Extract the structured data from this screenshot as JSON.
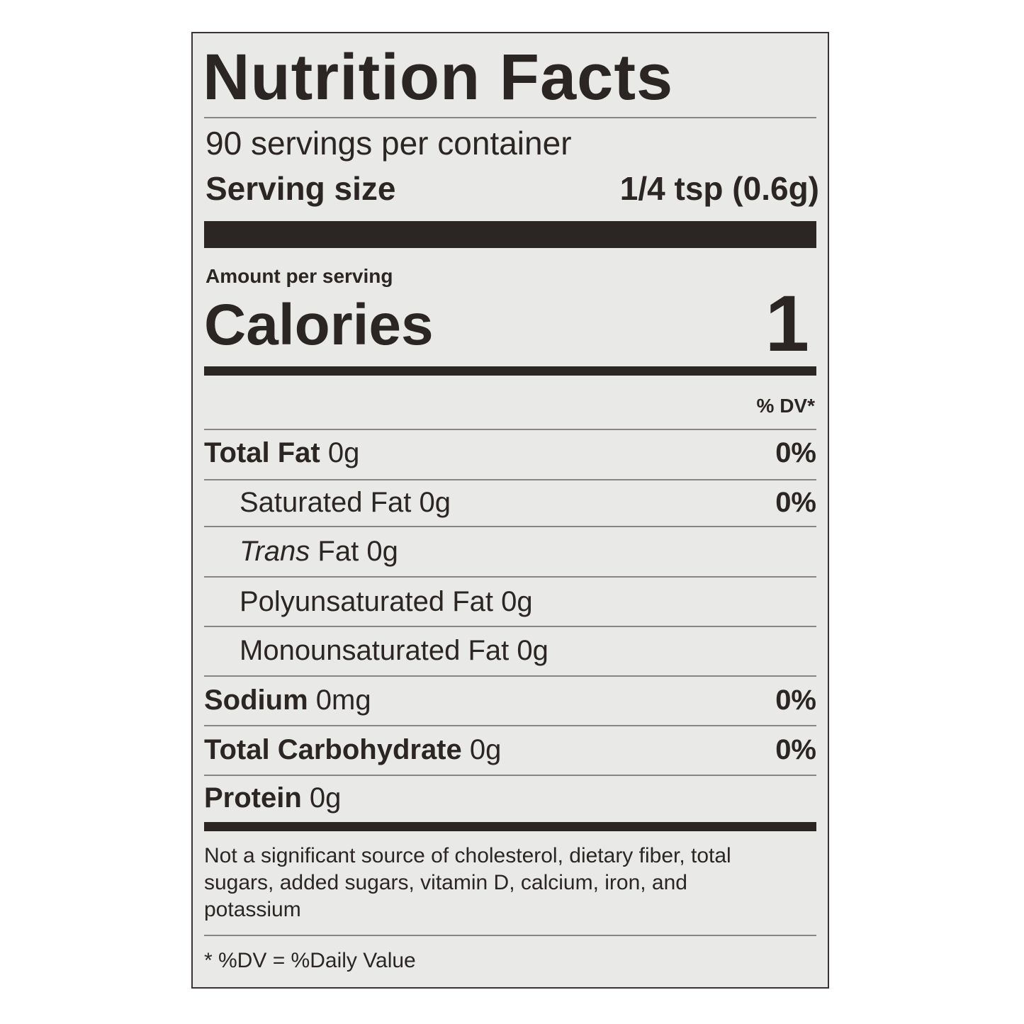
{
  "header": {
    "title": "Nutrition Facts",
    "servings": "90 servings per container",
    "serving_size_label": "Serving size",
    "serving_size_value": "1/4 tsp (0.6g)"
  },
  "calories": {
    "amount_label": "Amount per serving",
    "label": "Calories",
    "value": "1"
  },
  "dv_header": "% DV*",
  "nutrients": [
    {
      "name": "Total Fat",
      "amount": "0g",
      "dv": "0%"
    },
    {
      "name": "Saturated Fat",
      "amount": "0g",
      "dv": "0%"
    },
    {
      "name_italic": "Trans",
      "name": "Fat",
      "amount": "0g"
    },
    {
      "name": "Polyunsaturated Fat",
      "amount": "0g"
    },
    {
      "name": "Monounsaturated Fat",
      "amount": "0g"
    },
    {
      "name": "Sodium",
      "amount": "0mg",
      "dv": "0%"
    },
    {
      "name": "Total Carbohydrate",
      "amount": "0g",
      "dv": "0%"
    },
    {
      "name": "Protein",
      "amount": "0g"
    }
  ],
  "footnote": "Not a significant source of cholesterol, dietary fiber, total sugars, added sugars, vitamin D, calcium, iron, and potassium",
  "dv_note": "* %DV = %Daily Value"
}
